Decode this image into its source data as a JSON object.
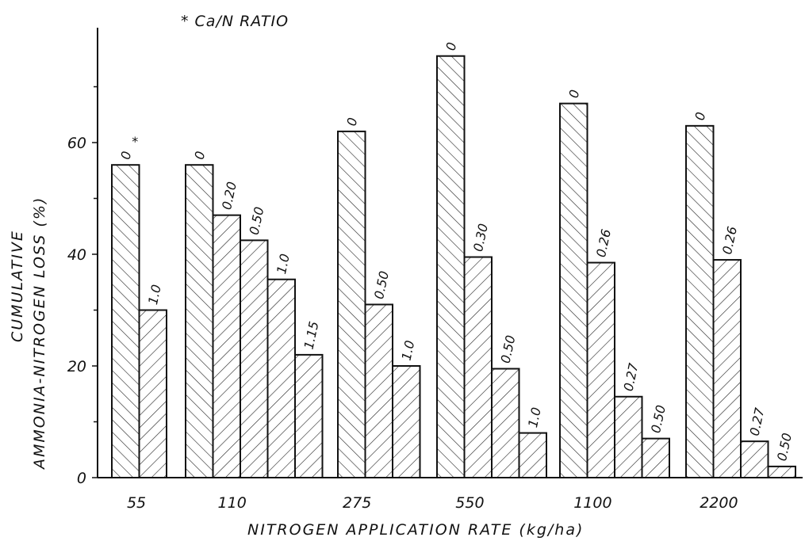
{
  "chart_data": {
    "type": "bar",
    "title": "",
    "legend_note": "* Ca/N RATIO",
    "xlabel": "NITROGEN APPLICATION RATE (kg/ha)",
    "ylabel_line1": "CUMULATIVE",
    "ylabel_line2": "AMMONIA-NITROGEN LOSS (%)",
    "ylim": [
      0,
      80
    ],
    "yticks": [
      "0",
      "20",
      "40",
      "60"
    ],
    "ytick_values": [
      0,
      20,
      40,
      60
    ],
    "categories": [
      "55",
      "110",
      "275",
      "550",
      "1100",
      "2200"
    ],
    "groups": [
      {
        "rate": "55",
        "bars": [
          {
            "ratio": "0",
            "value": 56,
            "asterisk": true
          },
          {
            "ratio": "1.0",
            "value": 30
          }
        ]
      },
      {
        "rate": "110",
        "bars": [
          {
            "ratio": "0",
            "value": 56
          },
          {
            "ratio": "0.20",
            "value": 47
          },
          {
            "ratio": "0.50",
            "value": 42.5
          },
          {
            "ratio": "1.0",
            "value": 35.5
          },
          {
            "ratio": "1.15",
            "value": 22
          }
        ]
      },
      {
        "rate": "275",
        "bars": [
          {
            "ratio": "0",
            "value": 62
          },
          {
            "ratio": "0.50",
            "value": 31
          },
          {
            "ratio": "1.0",
            "value": 20
          }
        ]
      },
      {
        "rate": "550",
        "bars": [
          {
            "ratio": "0",
            "value": 75.5
          },
          {
            "ratio": "0.30",
            "value": 39.5
          },
          {
            "ratio": "0.50",
            "value": 19.5
          },
          {
            "ratio": "1.0",
            "value": 8
          }
        ]
      },
      {
        "rate": "1100",
        "bars": [
          {
            "ratio": "0",
            "value": 67
          },
          {
            "ratio": "0.26",
            "value": 38.5
          },
          {
            "ratio": "0.27",
            "value": 14.5
          },
          {
            "ratio": "0.50",
            "value": 7
          }
        ]
      },
      {
        "rate": "2200",
        "bars": [
          {
            "ratio": "0",
            "value": 63
          },
          {
            "ratio": "0.26",
            "value": 39
          },
          {
            "ratio": "0.27",
            "value": 6.5
          },
          {
            "ratio": "0.50",
            "value": 2
          }
        ]
      }
    ],
    "grid": false,
    "legend_position": "top-left"
  }
}
